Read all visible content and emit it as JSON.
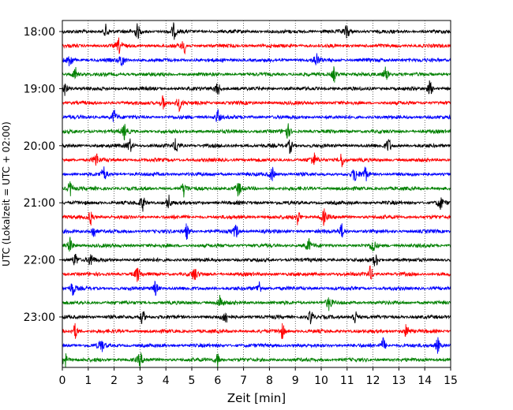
{
  "chart_data": {
    "type": "line",
    "title": "",
    "xlabel": "Zeit  [min]",
    "ylabel": "UTC (Lokalzeit = UTC + 02:00)",
    "xlim": [
      0,
      15
    ],
    "x_ticks": [
      0,
      1,
      2,
      3,
      4,
      5,
      6,
      7,
      8,
      9,
      10,
      11,
      12,
      13,
      14,
      15
    ],
    "x_tick_labels": [
      "0",
      "1",
      "2",
      "3",
      "4",
      "5",
      "6",
      "7",
      "8",
      "9",
      "10",
      "11",
      "12",
      "13",
      "14",
      "15"
    ],
    "y_tick_labels": [
      "18:00",
      "19:00",
      "20:00",
      "21:00",
      "22:00",
      "23:00"
    ],
    "grid": "vertical dotted",
    "trace_colors": [
      "#000000",
      "#ff0000",
      "#0000ff",
      "#008000"
    ],
    "rows": [
      {
        "start": "18:00",
        "color": "#000000",
        "events": [
          1.7,
          4.3,
          2.9,
          11.0
        ]
      },
      {
        "start": "18:15",
        "color": "#ff0000",
        "events": [
          2.2,
          4.7
        ]
      },
      {
        "start": "18:30",
        "color": "#0000ff",
        "events": [
          2.3,
          0.3,
          9.8
        ]
      },
      {
        "start": "18:45",
        "color": "#008000",
        "events": [
          0.5,
          10.5,
          12.5
        ]
      },
      {
        "start": "19:00",
        "color": "#000000",
        "events": [
          0.1,
          14.2,
          6.0
        ]
      },
      {
        "start": "19:15",
        "color": "#ff0000",
        "events": [
          3.9,
          4.5
        ]
      },
      {
        "start": "19:30",
        "color": "#0000ff",
        "events": [
          2.0,
          6.0
        ]
      },
      {
        "start": "19:45",
        "color": "#008000",
        "events": [
          2.4,
          8.7
        ]
      },
      {
        "start": "20:00",
        "color": "#000000",
        "events": [
          2.6,
          4.4,
          8.8,
          12.6
        ]
      },
      {
        "start": "20:15",
        "color": "#ff0000",
        "events": [
          9.7,
          10.8,
          1.3
        ]
      },
      {
        "start": "20:30",
        "color": "#0000ff",
        "events": [
          1.6,
          8.1,
          11.3,
          11.7
        ]
      },
      {
        "start": "20:45",
        "color": "#008000",
        "events": [
          0.3,
          4.7,
          6.8
        ]
      },
      {
        "start": "21:00",
        "color": "#000000",
        "events": [
          4.1,
          3.1,
          14.6
        ]
      },
      {
        "start": "21:15",
        "color": "#ff0000",
        "events": [
          9.1,
          10.1,
          1.1
        ]
      },
      {
        "start": "21:30",
        "color": "#0000ff",
        "events": [
          1.2,
          4.8,
          6.7,
          10.8
        ]
      },
      {
        "start": "21:45",
        "color": "#008000",
        "events": [
          0.3,
          9.5,
          12.0
        ]
      },
      {
        "start": "22:00",
        "color": "#000000",
        "events": [
          1.1,
          12.1,
          0.5
        ]
      },
      {
        "start": "22:15",
        "color": "#ff0000",
        "events": [
          2.9,
          5.1,
          11.9
        ]
      },
      {
        "start": "22:30",
        "color": "#0000ff",
        "events": [
          0.4,
          3.6,
          7.6
        ]
      },
      {
        "start": "22:45",
        "color": "#008000",
        "events": [
          6.1,
          10.3
        ]
      },
      {
        "start": "23:00",
        "color": "#000000",
        "events": [
          3.1,
          6.3,
          9.6,
          11.3
        ]
      },
      {
        "start": "23:15",
        "color": "#ff0000",
        "events": [
          0.5,
          8.5,
          13.3
        ]
      },
      {
        "start": "23:30",
        "color": "#0000ff",
        "events": [
          1.5,
          12.4,
          14.5
        ]
      },
      {
        "start": "23:45",
        "color": "#008000",
        "events": [
          0.1,
          3.0,
          6.0
        ]
      }
    ]
  }
}
